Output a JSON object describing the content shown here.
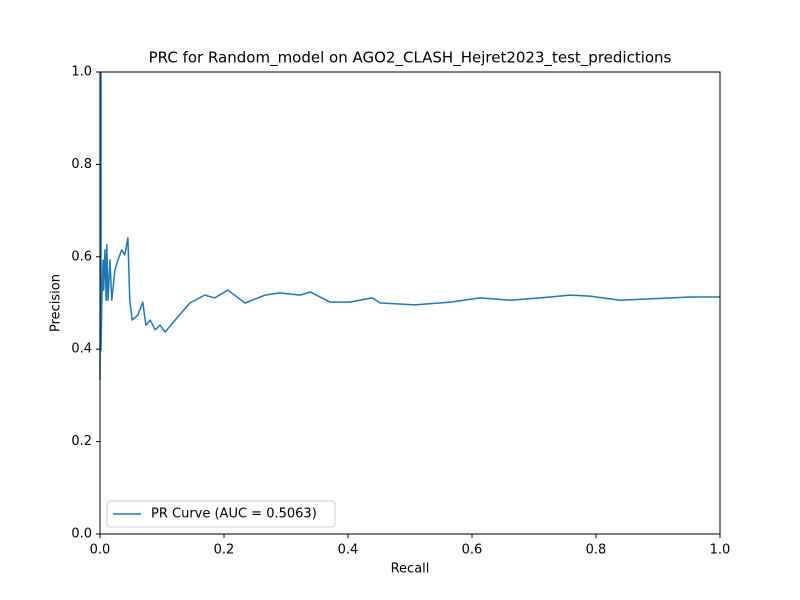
{
  "chart_data": {
    "type": "line",
    "title": "PRC for Random_model on AGO2_CLASH_Hejret2023_test_predictions",
    "x_label": "Recall",
    "y_label": "Precision",
    "x": [
      0,
      0.0016,
      0.0016,
      0.003,
      0.005,
      0.006,
      0.008,
      0.01,
      0.011,
      0.013,
      0.016,
      0.019,
      0.024,
      0.029,
      0.035,
      0.04,
      0.045,
      0.048,
      0.052,
      0.061,
      0.069,
      0.074,
      0.081,
      0.089,
      0.097,
      0.105,
      0.121,
      0.145,
      0.169,
      0.185,
      0.206,
      0.234,
      0.266,
      0.29,
      0.323,
      0.339,
      0.371,
      0.403,
      0.439,
      0.452,
      0.508,
      0.565,
      0.613,
      0.661,
      0.71,
      0.758,
      0.79,
      0.839,
      0.887,
      0.952,
      1.0
    ],
    "series": [
      {
        "name": "PR Curve (AUC = 0.5063)",
        "color": "#1f77b4",
        "values": [
          0.333,
          1,
          0.398,
          0.506,
          0.593,
          0.528,
          0.615,
          0.506,
          0.626,
          0.506,
          0.593,
          0.506,
          0.571,
          0.593,
          0.615,
          0.604,
          0.641,
          0.506,
          0.463,
          0.474,
          0.502,
          0.452,
          0.463,
          0.442,
          0.452,
          0.437,
          0.463,
          0.5,
          0.517,
          0.511,
          0.528,
          0.5,
          0.517,
          0.522,
          0.517,
          0.524,
          0.502,
          0.502,
          0.511,
          0.5,
          0.496,
          0.502,
          0.511,
          0.506,
          0.511,
          0.517,
          0.515,
          0.506,
          0.509,
          0.513,
          0.513
        ]
      }
    ],
    "xlim": [
      0,
      1
    ],
    "ylim": [
      0,
      1
    ],
    "xticks": [
      {
        "value": 0,
        "label": "0.0"
      },
      0.2,
      0.4,
      0.6,
      0.8,
      {
        "value": 1,
        "label": "1.0"
      }
    ],
    "yticks": [
      {
        "value": 0,
        "label": "0.0"
      },
      0.2,
      0.4,
      0.6,
      0.8,
      {
        "value": 1,
        "label": "1.0"
      }
    ],
    "legend": "lower left"
  }
}
